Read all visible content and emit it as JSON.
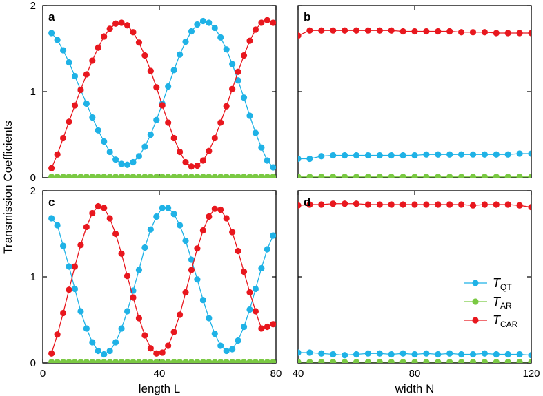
{
  "figure": {
    "ylabel": "Transmission Coefficients",
    "colors": {
      "QT": "#1fb2e6",
      "AR": "#7ac943",
      "CAR": "#e8171e"
    }
  },
  "chart_data": [
    {
      "type": "line",
      "panel": "a",
      "xlabel": "",
      "ylabel": "Transmission Coefficients",
      "xlim": [
        0,
        80
      ],
      "ylim": [
        0,
        2
      ],
      "xticks": [
        0,
        40,
        80
      ],
      "yticks": [
        0,
        1,
        2
      ],
      "show_xtick_labels": false,
      "show_ytick_labels": true,
      "series": [
        {
          "key": "QT",
          "name": "T_QT",
          "x": [
            3,
            5,
            7,
            9,
            11,
            13,
            15,
            17,
            19,
            21,
            23,
            25,
            27,
            29,
            31,
            33,
            35,
            37,
            39,
            41,
            43,
            45,
            47,
            49,
            51,
            53,
            55,
            57,
            59,
            61,
            63,
            65,
            67,
            69,
            71,
            73,
            75,
            77,
            79
          ],
          "y": [
            1.68,
            1.6,
            1.48,
            1.34,
            1.18,
            1.02,
            0.86,
            0.7,
            0.55,
            0.42,
            0.3,
            0.21,
            0.16,
            0.15,
            0.18,
            0.25,
            0.36,
            0.5,
            0.67,
            0.86,
            1.06,
            1.25,
            1.43,
            1.58,
            1.7,
            1.78,
            1.82,
            1.8,
            1.74,
            1.63,
            1.49,
            1.32,
            1.13,
            0.93,
            0.72,
            0.52,
            0.35,
            0.2,
            0.12
          ]
        },
        {
          "key": "AR",
          "name": "T_AR",
          "x": [
            3,
            5,
            7,
            9,
            11,
            13,
            15,
            17,
            19,
            21,
            23,
            25,
            27,
            29,
            31,
            33,
            35,
            37,
            39,
            41,
            43,
            45,
            47,
            49,
            51,
            53,
            55,
            57,
            59,
            61,
            63,
            65,
            67,
            69,
            71,
            73,
            75,
            77,
            79
          ],
          "y": [
            0.01,
            0.01,
            0.01,
            0.01,
            0.01,
            0.01,
            0.01,
            0.01,
            0.01,
            0.01,
            0.01,
            0.01,
            0.01,
            0.01,
            0.01,
            0.01,
            0.01,
            0.01,
            0.01,
            0.01,
            0.01,
            0.01,
            0.01,
            0.01,
            0.01,
            0.01,
            0.01,
            0.01,
            0.01,
            0.01,
            0.01,
            0.01,
            0.01,
            0.01,
            0.01,
            0.01,
            0.01,
            0.01,
            0.01
          ]
        },
        {
          "key": "CAR",
          "name": "T_CAR",
          "x": [
            3,
            5,
            7,
            9,
            11,
            13,
            15,
            17,
            19,
            21,
            23,
            25,
            27,
            29,
            31,
            33,
            35,
            37,
            39,
            41,
            43,
            45,
            47,
            49,
            51,
            53,
            55,
            57,
            59,
            61,
            63,
            65,
            67,
            69,
            71,
            73,
            75,
            77,
            79
          ],
          "y": [
            0.11,
            0.27,
            0.46,
            0.65,
            0.84,
            1.02,
            1.2,
            1.36,
            1.51,
            1.64,
            1.73,
            1.79,
            1.8,
            1.77,
            1.69,
            1.57,
            1.42,
            1.24,
            1.05,
            0.84,
            0.64,
            0.46,
            0.3,
            0.18,
            0.13,
            0.14,
            0.2,
            0.31,
            0.46,
            0.64,
            0.83,
            1.03,
            1.23,
            1.42,
            1.59,
            1.72,
            1.8,
            1.83,
            1.8
          ]
        }
      ]
    },
    {
      "type": "line",
      "panel": "b",
      "xlabel": "",
      "ylabel": "",
      "xlim": [
        40,
        120
      ],
      "ylim": [
        0,
        2
      ],
      "xticks": [
        40,
        80,
        120
      ],
      "yticks": [
        0,
        1,
        2
      ],
      "show_xtick_labels": false,
      "show_ytick_labels": false,
      "series": [
        {
          "key": "QT",
          "name": "T_QT",
          "x": [
            40,
            44,
            48,
            52,
            56,
            60,
            64,
            68,
            72,
            76,
            80,
            84,
            88,
            92,
            96,
            100,
            104,
            108,
            112,
            116,
            120
          ],
          "y": [
            0.22,
            0.22,
            0.25,
            0.26,
            0.26,
            0.26,
            0.26,
            0.26,
            0.26,
            0.26,
            0.26,
            0.27,
            0.27,
            0.27,
            0.27,
            0.27,
            0.27,
            0.27,
            0.27,
            0.28,
            0.28
          ]
        },
        {
          "key": "AR",
          "name": "T_AR",
          "x": [
            40,
            44,
            48,
            52,
            56,
            60,
            64,
            68,
            72,
            76,
            80,
            84,
            88,
            92,
            96,
            100,
            104,
            108,
            112,
            116,
            120
          ],
          "y": [
            0.01,
            0.01,
            0.01,
            0.01,
            0.01,
            0.01,
            0.01,
            0.01,
            0.01,
            0.01,
            0.01,
            0.01,
            0.01,
            0.01,
            0.01,
            0.01,
            0.01,
            0.01,
            0.01,
            0.01,
            0.01
          ]
        },
        {
          "key": "CAR",
          "name": "T_CAR",
          "x": [
            40,
            44,
            48,
            52,
            56,
            60,
            64,
            68,
            72,
            76,
            80,
            84,
            88,
            92,
            96,
            100,
            104,
            108,
            112,
            116,
            120
          ],
          "y": [
            1.65,
            1.71,
            1.71,
            1.71,
            1.71,
            1.71,
            1.71,
            1.71,
            1.71,
            1.7,
            1.7,
            1.7,
            1.7,
            1.7,
            1.69,
            1.69,
            1.69,
            1.68,
            1.68,
            1.68,
            1.68
          ]
        }
      ]
    },
    {
      "type": "line",
      "panel": "c",
      "xlabel": "length L",
      "ylabel": "Transmission Coefficients",
      "xlim": [
        0,
        80
      ],
      "ylim": [
        0,
        2
      ],
      "xticks": [
        0,
        40,
        80
      ],
      "yticks": [
        0,
        1,
        2
      ],
      "show_xtick_labels": true,
      "show_ytick_labels": true,
      "series": [
        {
          "key": "QT",
          "name": "T_QT",
          "x": [
            3,
            5,
            7,
            9,
            11,
            13,
            15,
            17,
            19,
            21,
            23,
            25,
            27,
            29,
            31,
            33,
            35,
            37,
            39,
            41,
            43,
            45,
            47,
            49,
            51,
            53,
            55,
            57,
            59,
            61,
            63,
            65,
            67,
            69,
            71,
            73,
            75,
            77,
            79
          ],
          "y": [
            1.68,
            1.6,
            1.36,
            1.12,
            0.86,
            0.6,
            0.4,
            0.24,
            0.14,
            0.1,
            0.14,
            0.24,
            0.4,
            0.6,
            0.84,
            1.08,
            1.34,
            1.55,
            1.7,
            1.8,
            1.8,
            1.73,
            1.6,
            1.42,
            1.2,
            0.97,
            0.73,
            0.52,
            0.34,
            0.2,
            0.14,
            0.16,
            0.26,
            0.42,
            0.62,
            0.86,
            1.1,
            1.32,
            1.48
          ]
        },
        {
          "key": "AR",
          "name": "T_AR",
          "x": [
            3,
            5,
            7,
            9,
            11,
            13,
            15,
            17,
            19,
            21,
            23,
            25,
            27,
            29,
            31,
            33,
            35,
            37,
            39,
            41,
            43,
            45,
            47,
            49,
            51,
            53,
            55,
            57,
            59,
            61,
            63,
            65,
            67,
            69,
            71,
            73,
            75,
            77,
            79
          ],
          "y": [
            0.01,
            0.01,
            0.01,
            0.01,
            0.01,
            0.01,
            0.01,
            0.01,
            0.01,
            0.01,
            0.01,
            0.01,
            0.01,
            0.01,
            0.01,
            0.01,
            0.01,
            0.01,
            0.01,
            0.01,
            0.01,
            0.01,
            0.01,
            0.01,
            0.01,
            0.01,
            0.01,
            0.01,
            0.01,
            0.01,
            0.01,
            0.01,
            0.01,
            0.01,
            0.01,
            0.01,
            0.01,
            0.01,
            0.01
          ]
        },
        {
          "key": "CAR",
          "name": "T_CAR",
          "x": [
            3,
            5,
            7,
            9,
            11,
            13,
            15,
            17,
            19,
            21,
            23,
            25,
            27,
            29,
            31,
            33,
            35,
            37,
            39,
            41,
            43,
            45,
            47,
            49,
            51,
            53,
            55,
            57,
            59,
            61,
            63,
            65,
            67,
            69,
            71,
            73,
            75,
            77,
            79
          ],
          "y": [
            0.11,
            0.33,
            0.58,
            0.85,
            1.12,
            1.37,
            1.58,
            1.74,
            1.82,
            1.8,
            1.68,
            1.5,
            1.27,
            1.01,
            0.76,
            0.52,
            0.32,
            0.17,
            0.11,
            0.12,
            0.2,
            0.36,
            0.56,
            0.82,
            1.08,
            1.33,
            1.54,
            1.7,
            1.79,
            1.78,
            1.68,
            1.52,
            1.3,
            1.06,
            0.82,
            0.6,
            0.4,
            0.42,
            0.45
          ]
        }
      ]
    },
    {
      "type": "line",
      "panel": "d",
      "xlabel": "width N",
      "ylabel": "",
      "xlim": [
        40,
        120
      ],
      "ylim": [
        0,
        2
      ],
      "xticks": [
        40,
        80,
        120
      ],
      "yticks": [
        0,
        1,
        2
      ],
      "show_xtick_labels": true,
      "show_ytick_labels": false,
      "series": [
        {
          "key": "QT",
          "name": "T_QT",
          "x": [
            40,
            44,
            48,
            52,
            56,
            60,
            64,
            68,
            72,
            76,
            80,
            84,
            88,
            92,
            96,
            100,
            104,
            108,
            112,
            116,
            120
          ],
          "y": [
            0.12,
            0.12,
            0.11,
            0.1,
            0.09,
            0.1,
            0.11,
            0.11,
            0.1,
            0.11,
            0.1,
            0.11,
            0.1,
            0.11,
            0.1,
            0.1,
            0.11,
            0.1,
            0.1,
            0.1,
            0.09
          ]
        },
        {
          "key": "AR",
          "name": "T_AR",
          "x": [
            40,
            44,
            48,
            52,
            56,
            60,
            64,
            68,
            72,
            76,
            80,
            84,
            88,
            92,
            96,
            100,
            104,
            108,
            112,
            116,
            120
          ],
          "y": [
            0.01,
            0.01,
            0.01,
            0.01,
            0.01,
            0.01,
            0.01,
            0.01,
            0.01,
            0.01,
            0.01,
            0.01,
            0.01,
            0.01,
            0.01,
            0.01,
            0.01,
            0.01,
            0.01,
            0.01,
            0.01
          ]
        },
        {
          "key": "CAR",
          "name": "T_CAR",
          "x": [
            40,
            44,
            48,
            52,
            56,
            60,
            64,
            68,
            72,
            76,
            80,
            84,
            88,
            92,
            96,
            100,
            104,
            108,
            112,
            116,
            120
          ],
          "y": [
            1.83,
            1.84,
            1.84,
            1.85,
            1.85,
            1.85,
            1.84,
            1.84,
            1.84,
            1.84,
            1.84,
            1.84,
            1.84,
            1.84,
            1.84,
            1.83,
            1.84,
            1.84,
            1.84,
            1.83,
            1.81
          ]
        }
      ],
      "legend": {
        "placement": "bottom-right",
        "entries": [
          {
            "key": "QT",
            "main": "T",
            "sub": "QT"
          },
          {
            "key": "AR",
            "main": "T",
            "sub": "AR"
          },
          {
            "key": "CAR",
            "main": "T",
            "sub": "CAR"
          }
        ]
      }
    }
  ]
}
